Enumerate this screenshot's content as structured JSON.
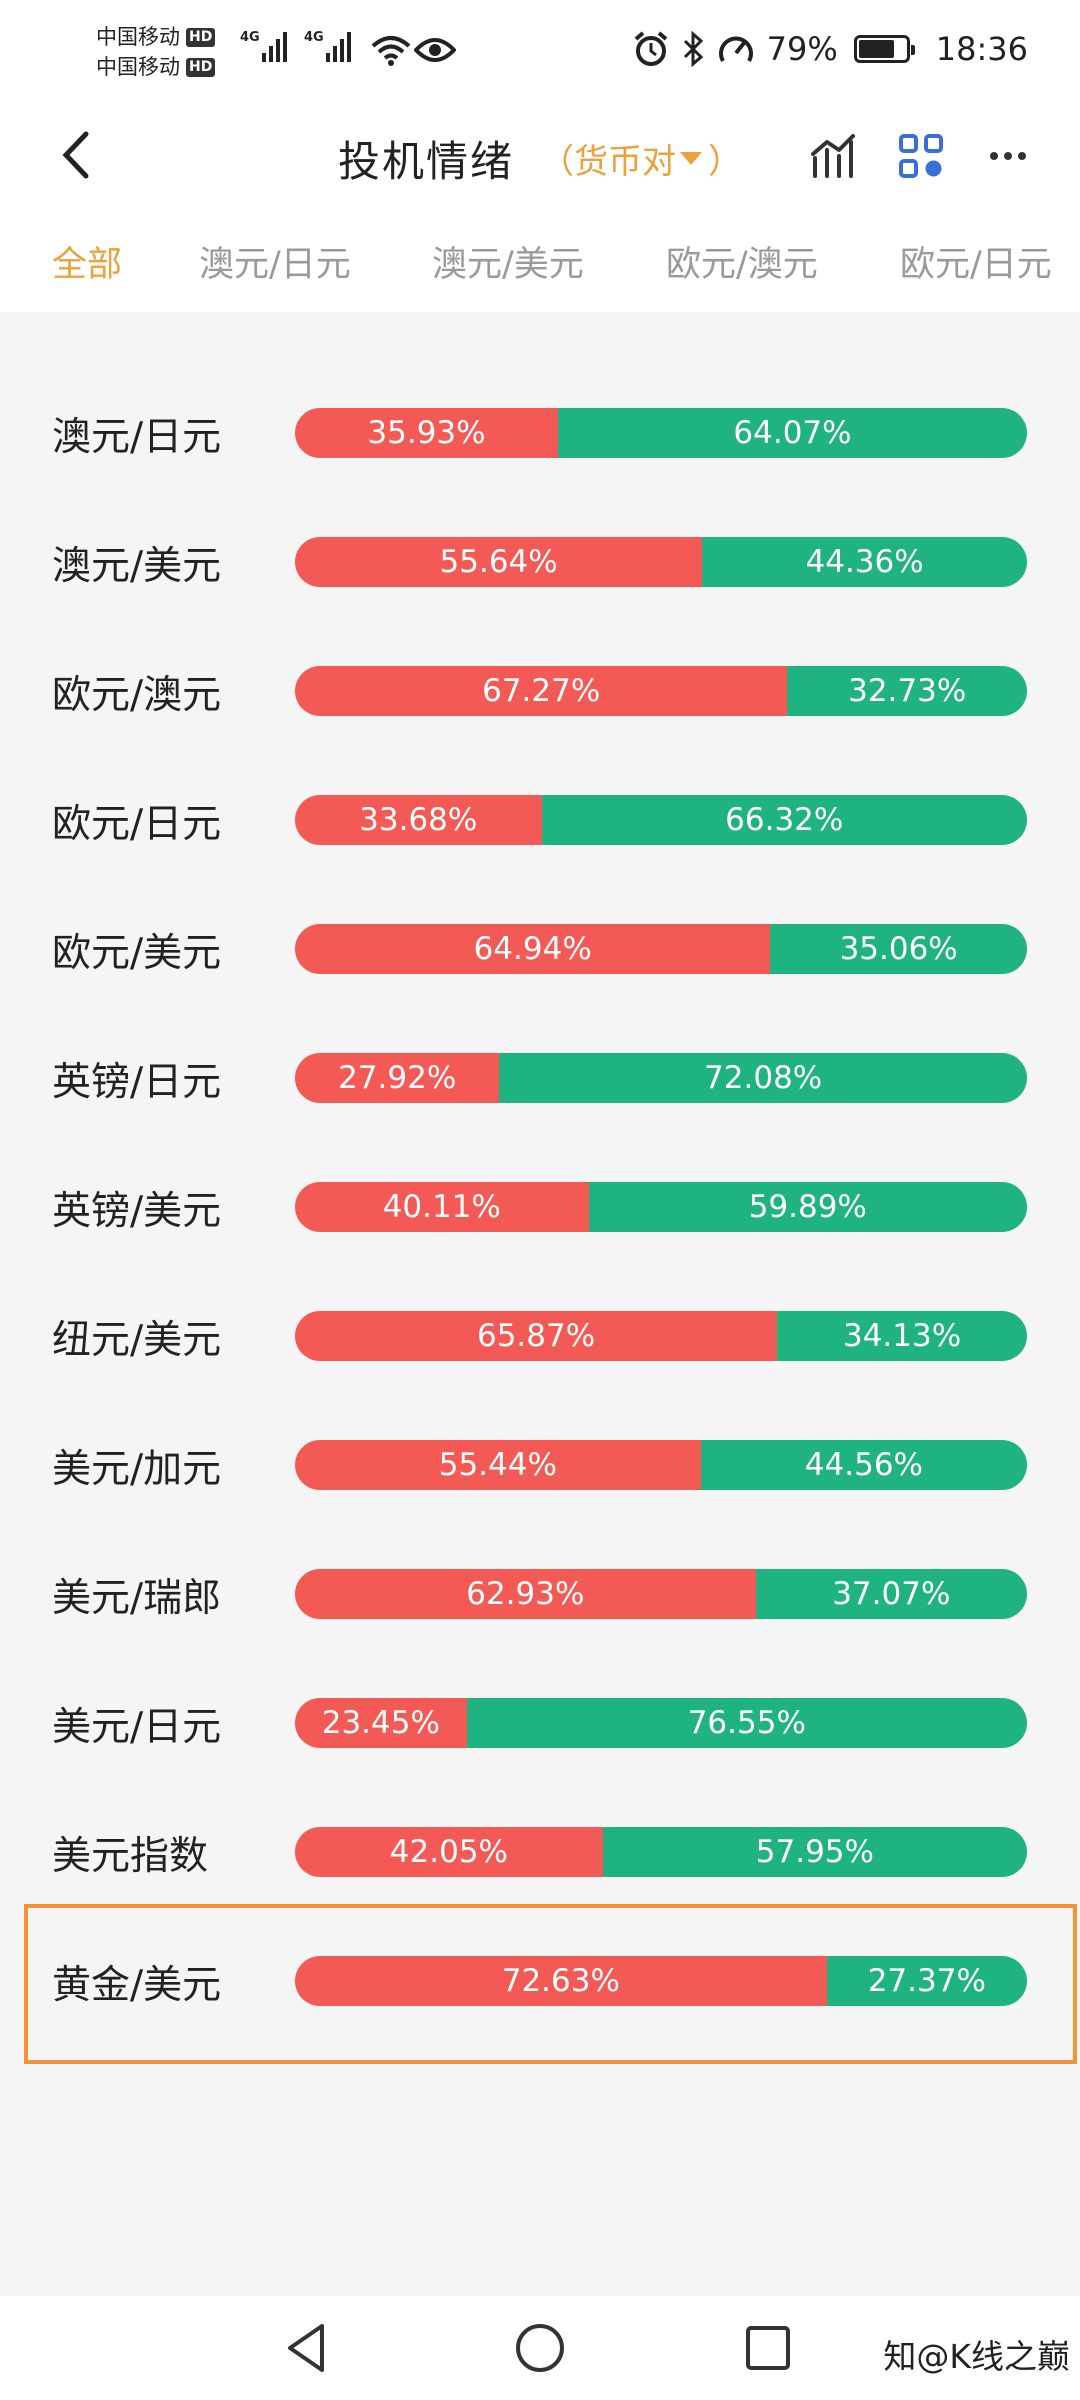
{
  "status_bar": {
    "carrier1": "中国移动",
    "carrier2": "中国移动",
    "hd_badge": "HD",
    "net_label": "4G",
    "battery": "79%",
    "battery_level": 0.79,
    "time": "18:36",
    "icons": [
      "wifi-icon",
      "eye-icon",
      "alarm-icon",
      "bluetooth-icon",
      "speed-icon",
      "battery-icon"
    ]
  },
  "header": {
    "title": "投机情绪",
    "filter_open": "（",
    "filter_label": "货币对",
    "filter_close": "）",
    "icons": [
      "back-icon",
      "chart-icon",
      "grid-icon",
      "more-icon"
    ]
  },
  "tabs": [
    "全部",
    "澳元/日元",
    "澳元/美元",
    "欧元/澳元",
    "欧元/日元"
  ],
  "colors": {
    "accent": "#e8a33c",
    "red": "#f45a55",
    "green": "#1fb37f",
    "highlight": "#f39236"
  },
  "rows": [
    {
      "pair": "澳元/日元",
      "long": "35.93%",
      "short": "64.07%",
      "long_value": 35.93
    },
    {
      "pair": "澳元/美元",
      "long": "55.64%",
      "short": "44.36%",
      "long_value": 55.64
    },
    {
      "pair": "欧元/澳元",
      "long": "67.27%",
      "short": "32.73%",
      "long_value": 67.27
    },
    {
      "pair": "欧元/日元",
      "long": "33.68%",
      "short": "66.32%",
      "long_value": 33.68
    },
    {
      "pair": "欧元/美元",
      "long": "64.94%",
      "short": "35.06%",
      "long_value": 64.94
    },
    {
      "pair": "英镑/日元",
      "long": "27.92%",
      "short": "72.08%",
      "long_value": 27.92
    },
    {
      "pair": "英镑/美元",
      "long": "40.11%",
      "short": "59.89%",
      "long_value": 40.11
    },
    {
      "pair": "纽元/美元",
      "long": "65.87%",
      "short": "34.13%",
      "long_value": 65.87
    },
    {
      "pair": "美元/加元",
      "long": "55.44%",
      "short": "44.56%",
      "long_value": 55.44
    },
    {
      "pair": "美元/瑞郎",
      "long": "62.93%",
      "short": "37.07%",
      "long_value": 62.93
    },
    {
      "pair": "美元/日元",
      "long": "23.45%",
      "short": "76.55%",
      "long_value": 23.45
    },
    {
      "pair": "美元指数",
      "long": "42.05%",
      "short": "57.95%",
      "long_value": 42.05
    },
    {
      "pair": "黄金/美元",
      "long": "72.63%",
      "short": "27.37%",
      "long_value": 72.63
    }
  ],
  "watermark": "知@K线之巅"
}
